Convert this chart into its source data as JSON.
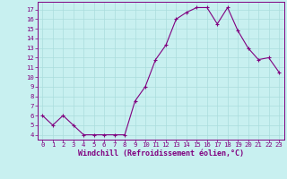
{
  "x": [
    0,
    1,
    2,
    3,
    4,
    5,
    6,
    7,
    8,
    9,
    10,
    11,
    12,
    13,
    14,
    15,
    16,
    17,
    18,
    19,
    20,
    21,
    22,
    23
  ],
  "y": [
    6,
    5,
    6,
    5,
    4,
    4,
    4,
    4,
    4,
    7.5,
    9,
    11.8,
    13.3,
    16,
    16.7,
    17.2,
    17.2,
    15.5,
    17.2,
    14.8,
    13,
    11.8,
    12,
    10.5
  ],
  "line_color": "#800080",
  "marker": "+",
  "marker_size": 3,
  "bg_color": "#c8f0f0",
  "grid_color": "#aadddd",
  "xlabel": "Windchill (Refroidissement éolien,°C)",
  "xlim": [
    -0.5,
    23.5
  ],
  "ylim": [
    3.5,
    17.8
  ],
  "yticks": [
    4,
    5,
    6,
    7,
    8,
    9,
    10,
    11,
    12,
    13,
    14,
    15,
    16,
    17
  ],
  "xticks": [
    0,
    1,
    2,
    3,
    4,
    5,
    6,
    7,
    8,
    9,
    10,
    11,
    12,
    13,
    14,
    15,
    16,
    17,
    18,
    19,
    20,
    21,
    22,
    23
  ],
  "tick_color": "#800080",
  "label_color": "#800080",
  "spine_color": "#800080",
  "tick_fontsize": 5.2,
  "xlabel_fontsize": 6.0
}
